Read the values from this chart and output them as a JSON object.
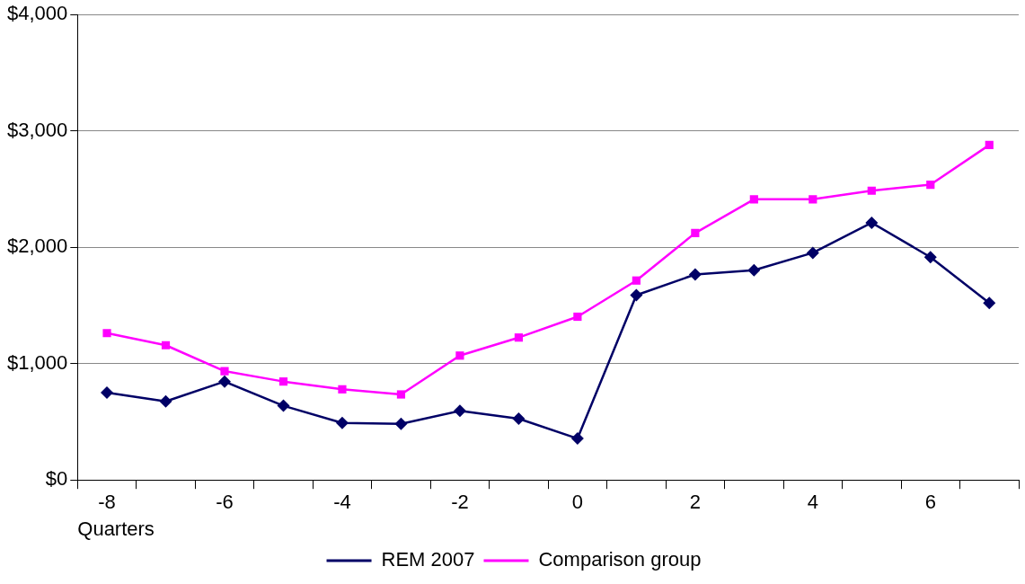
{
  "chart_data": {
    "type": "line",
    "xlabel": "Quarters",
    "categories": [
      "-8",
      null,
      "-6",
      null,
      "-4",
      null,
      "-2",
      null,
      "0",
      null,
      "2",
      null,
      "4",
      null,
      "6",
      null
    ],
    "series": [
      {
        "name": "REM 2007",
        "color": "#000066",
        "marker": "diamond",
        "values": [
          750,
          675,
          846,
          638,
          490,
          482,
          594,
          527,
          356,
          1588,
          1766,
          1803,
          1952,
          2211,
          1915,
          1521
        ]
      },
      {
        "name": "Comparison group",
        "color": "#ff00ff",
        "marker": "square",
        "values": [
          1262,
          1158,
          935,
          846,
          779,
          735,
          1069,
          1224,
          1403,
          1714,
          2122,
          2412,
          2412,
          2486,
          2538,
          2879
        ]
      }
    ],
    "ylim": [
      0,
      4000
    ],
    "yticks": [
      {
        "value": 0,
        "label": "$0"
      },
      {
        "value": 1000,
        "label": "$1,000"
      },
      {
        "value": 2000,
        "label": "$2,000"
      },
      {
        "value": 3000,
        "label": "$3,000"
      },
      {
        "value": 4000,
        "label": "$4,000"
      }
    ],
    "grid": "y",
    "legend": "bottom",
    "line_style": "solid"
  }
}
